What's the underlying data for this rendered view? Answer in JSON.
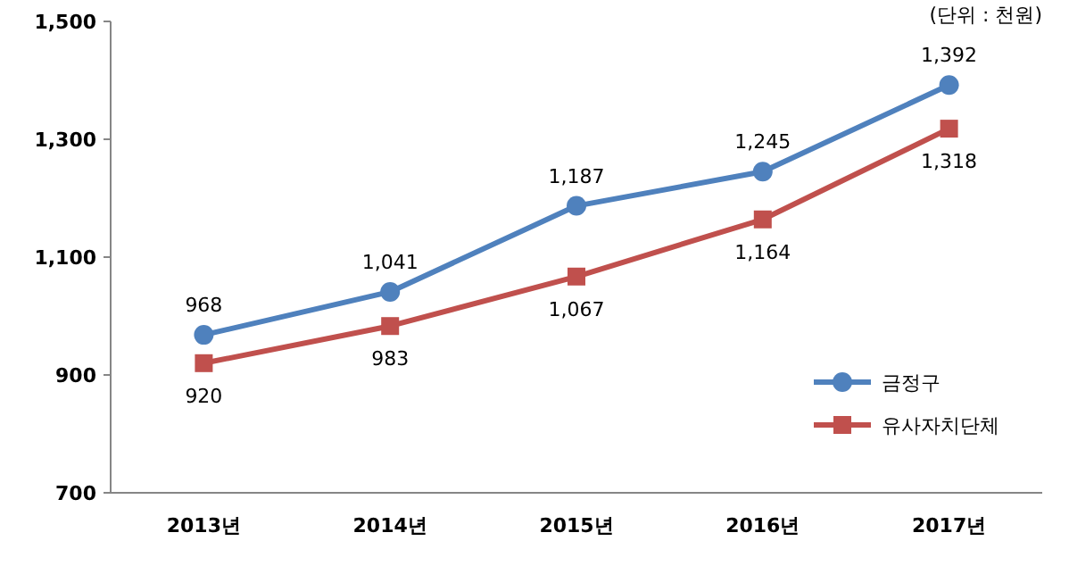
{
  "chart_data": {
    "type": "line",
    "annotations": [
      "(단위 : 천원)"
    ],
    "categories": [
      "2013년",
      "2014년",
      "2015년",
      "2016년",
      "2017년"
    ],
    "series": [
      {
        "name": "금정구",
        "color": "#4f81bd",
        "marker": "circle",
        "values": [
          968,
          1041,
          1187,
          1245,
          1392
        ],
        "value_labels": [
          "968",
          "1,041",
          "1,187",
          "1,245",
          "1,392"
        ]
      },
      {
        "name": "유사자치단체",
        "color": "#c0504d",
        "marker": "square",
        "values": [
          920,
          983,
          1067,
          1164,
          1318
        ],
        "value_labels": [
          "920",
          "983",
          "1,067",
          "1,164",
          "1,318"
        ]
      }
    ],
    "ylim": [
      700,
      1500
    ],
    "yticks": [
      {
        "value": 700,
        "label": "700"
      },
      {
        "value": 900,
        "label": "900"
      },
      {
        "value": 1100,
        "label": "1,100"
      },
      {
        "value": 1300,
        "label": "1,300"
      },
      {
        "value": 1500,
        "label": "1,500"
      }
    ],
    "legend": "right"
  }
}
